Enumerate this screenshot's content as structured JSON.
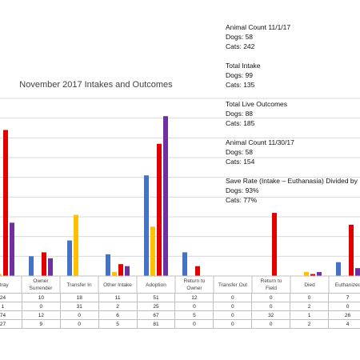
{
  "stats": {
    "animal_count_start": {
      "heading": "Animal Count 11/1/17",
      "dogs": "Dogs: 58",
      "cats": "Cats: 242"
    },
    "total_intake": {
      "heading": "Total Intake",
      "dogs": "Dogs: 99",
      "cats": "Cats: 135"
    },
    "total_live_outcomes": {
      "heading": "Total Live Outcomes",
      "dogs": "Dogs: 88",
      "cats": "Cats: 185"
    },
    "animal_count_end": {
      "heading": "Animal Count 11/30/17",
      "dogs": "Dogs: 58",
      "cats": "Cats: 154"
    },
    "save_rate": {
      "heading": "Save Rate (Intake – Euthanasia) Divided by",
      "dogs": "Dogs: 93%",
      "cats": "Cats: 77%"
    }
  },
  "chart_data": {
    "type": "bar",
    "title": "November 2017 Intakes and Outcomes",
    "categories": [
      "Stray",
      "Owner Surrender",
      "Transfer In",
      "Other Intake",
      "Adoption",
      "Return to Owner",
      "Transfer Out",
      "Return to Field",
      "Died",
      "Euthanized"
    ],
    "category_lines": [
      [
        "Stray"
      ],
      [
        "Owner",
        "Surrender"
      ],
      [
        "Transfer In"
      ],
      [
        "Other Intake"
      ],
      [
        "Adoption"
      ],
      [
        "Return to",
        "Owner"
      ],
      [
        "Transfer Out"
      ],
      [
        "Return to",
        "Field"
      ],
      [
        "Died"
      ],
      [
        "Euthanized"
      ]
    ],
    "series": [
      {
        "values": [
          24,
          10,
          18,
          11,
          51,
          12,
          0,
          0,
          0,
          7
        ],
        "color": "#4472c4"
      },
      {
        "values": [
          1,
          0,
          31,
          2,
          25,
          0,
          0,
          0,
          2,
          0
        ],
        "color": "#ffc000"
      },
      {
        "values": [
          74,
          12,
          0,
          6,
          67,
          5,
          0,
          32,
          1,
          26
        ],
        "color": "#e00000"
      },
      {
        "values": [
          27,
          9,
          0,
          5,
          81,
          0,
          0,
          0,
          2,
          4
        ],
        "color": "#7030a0"
      }
    ],
    "ylim": [
      0,
      90
    ],
    "grid": true,
    "data_table": true
  }
}
